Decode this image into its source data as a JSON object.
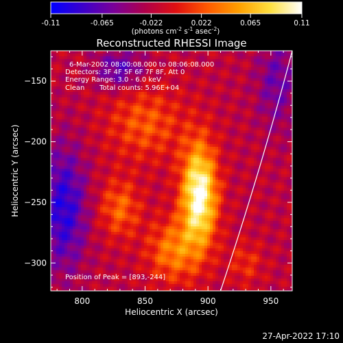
{
  "colorbar": {
    "tick_labels": [
      "-0.11",
      "-0.065",
      "-0.022",
      "0.022",
      "0.065",
      "0.11"
    ],
    "tick_values": [
      -0.11,
      -0.065,
      -0.022,
      0.022,
      0.065,
      0.11
    ],
    "range": [
      -0.11,
      0.11
    ],
    "units_main": "(photons cm",
    "units_sup1": "-2",
    "units_mid1": " s",
    "units_sup2": "-1",
    "units_mid2": " asec",
    "units_sup3": "-2",
    "units_end": ")",
    "palette": [
      "#0000ff",
      "#3a00cc",
      "#7a0099",
      "#b0004a",
      "#e01010",
      "#ff5a00",
      "#ffa000",
      "#ffe040",
      "#ffffff"
    ]
  },
  "chart_data": {
    "type": "heatmap",
    "title": "Reconstructed RHESSI Image",
    "xlabel": "Heliocentric X (arcsec)",
    "ylabel": "Heliocentric Y (arcsec)",
    "xlim": [
      775,
      967
    ],
    "ylim": [
      -323,
      -125
    ],
    "x_ticks": [
      800,
      850,
      900,
      950
    ],
    "x_tick_labels": [
      "800",
      "850",
      "900",
      "950"
    ],
    "y_ticks": [
      -150,
      -200,
      -250,
      -300
    ],
    "y_tick_labels": [
      "−150",
      "−200",
      "−250",
      "−300"
    ],
    "peak": {
      "x": 893,
      "y": -244,
      "value": 0.11
    },
    "limb": [
      {
        "x": 967,
        "y": -125
      },
      {
        "x": 943,
        "y": -220
      },
      {
        "x": 910,
        "y": -323
      }
    ],
    "annotations": [
      "6-Mar-2002 08:00:08.000 to 08:06:08.000",
      "Detectors: 3F 4F 5F 6F 7F 8F, Att 0",
      "Energy Range: 3.0 - 6.0 keV",
      "Clean",
      "Total counts: 5.96E+04"
    ],
    "peak_label": "Position of Peak = [893,-244]"
  },
  "footer": {
    "timestamp": "27-Apr-2022 17:10"
  }
}
